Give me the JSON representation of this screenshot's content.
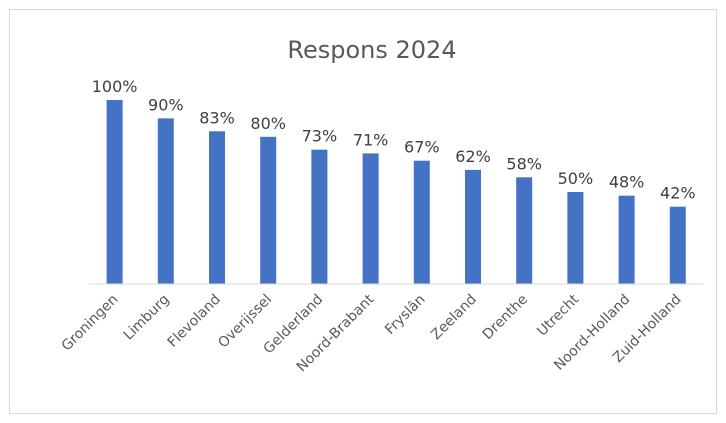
{
  "chart_data": {
    "type": "bar",
    "title": "Respons 2024",
    "xlabel": "",
    "ylabel": "",
    "categories": [
      "Groningen",
      "Limburg",
      "Flevoland",
      "Overijssel",
      "Gelderland",
      "Noord-Brabant",
      "Fryslân",
      "Zeeland",
      "Drenthe",
      "Utrecht",
      "Noord-Holland",
      "Zuid-Holland"
    ],
    "values": [
      100,
      90,
      83,
      80,
      73,
      71,
      67,
      62,
      58,
      50,
      48,
      42
    ],
    "value_labels": [
      "100%",
      "90%",
      "83%",
      "80%",
      "73%",
      "71%",
      "67%",
      "62%",
      "58%",
      "50%",
      "48%",
      "42%"
    ],
    "ylim": [
      0,
      100
    ],
    "grid": false,
    "legend": "none",
    "bar_color": "#4472c4",
    "axis_color": "#d9d9d9"
  }
}
